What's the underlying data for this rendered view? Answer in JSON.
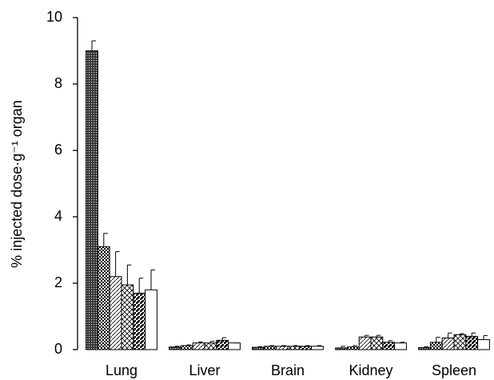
{
  "chart_data": {
    "type": "bar",
    "ylabel": "% injected dose·g⁻¹ organ",
    "categories": [
      "Lung",
      "Liver",
      "Brain",
      "Kidney",
      "Spleen"
    ],
    "ylim": [
      0,
      10
    ],
    "yticks": [
      0,
      2,
      4,
      6,
      8,
      10
    ],
    "series": [
      {
        "color": "#000000",
        "pattern": "dots",
        "values": [
          9.0,
          0.08,
          0.07,
          0.05,
          0.06
        ],
        "errors": [
          0.3,
          0.02,
          0.02,
          0.05,
          0.03
        ]
      },
      {
        "color": "#000000",
        "pattern": "check",
        "values": [
          3.1,
          0.12,
          0.1,
          0.08,
          0.22
        ],
        "errors": [
          0.4,
          0.02,
          0.02,
          0.04,
          0.15
        ]
      },
      {
        "color": "#000000",
        "pattern": "diag",
        "values": [
          2.2,
          0.2,
          0.1,
          0.38,
          0.35
        ],
        "errors": [
          0.75,
          0.03,
          0.02,
          0.05,
          0.15
        ]
      },
      {
        "color": "#000000",
        "pattern": "cross",
        "values": [
          1.95,
          0.2,
          0.1,
          0.38,
          0.45
        ],
        "errors": [
          0.6,
          0.05,
          0.02,
          0.05,
          0.03
        ]
      },
      {
        "color": "#000000",
        "pattern": "stripes",
        "values": [
          1.7,
          0.28,
          0.1,
          0.22,
          0.4
        ],
        "errors": [
          0.45,
          0.08,
          0.02,
          0.05,
          0.1
        ]
      },
      {
        "color": "#000000",
        "pattern": "none",
        "values": [
          1.8,
          0.2,
          0.1,
          0.2,
          0.3
        ],
        "errors": [
          0.6,
          0.0,
          0.02,
          0.02,
          0.12
        ]
      }
    ]
  }
}
